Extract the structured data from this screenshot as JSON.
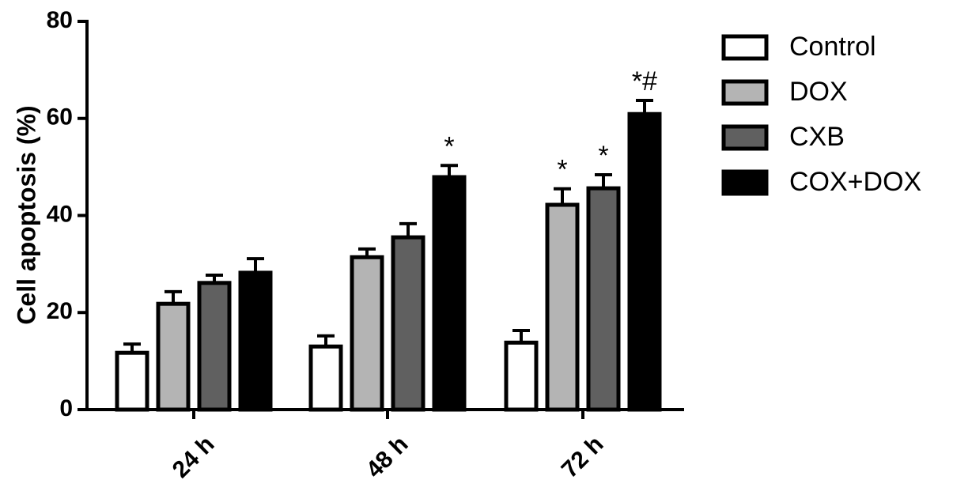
{
  "chart_data": {
    "type": "bar",
    "ylabel": "Cell apoptosis (%)",
    "categories": [
      "24 h",
      "48 h",
      "72 h"
    ],
    "ylim": [
      0,
      80
    ],
    "yticks": [
      0,
      20,
      40,
      60,
      80
    ],
    "legend": "right",
    "series": [
      {
        "name": "Control",
        "color": "#ffffff",
        "values": [
          11.7,
          13.0,
          13.8
        ],
        "errors": [
          1.8,
          2.2,
          2.5
        ]
      },
      {
        "name": "DOX",
        "color": "#b4b4b4",
        "values": [
          21.8,
          31.4,
          42.2
        ],
        "errors": [
          2.5,
          1.7,
          3.3
        ],
        "annotations": [
          null,
          null,
          "*"
        ]
      },
      {
        "name": "CXB",
        "color": "#606060",
        "values": [
          26.1,
          35.5,
          45.6
        ],
        "errors": [
          1.6,
          2.8,
          2.8
        ],
        "annotations": [
          null,
          null,
          "*"
        ]
      },
      {
        "name": "COX+DOX",
        "color": "#000000",
        "values": [
          28.2,
          47.9,
          60.9
        ],
        "errors": [
          2.9,
          2.4,
          2.8
        ],
        "annotations": [
          null,
          "*",
          "*#"
        ]
      }
    ]
  }
}
